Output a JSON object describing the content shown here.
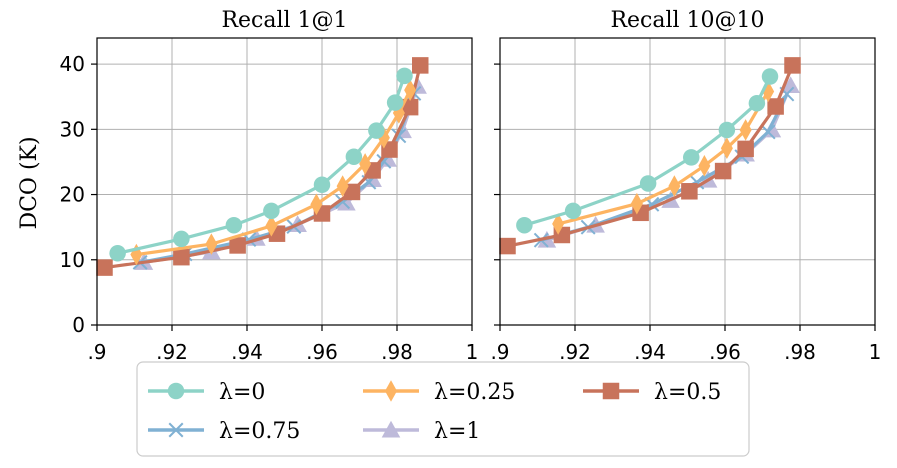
{
  "chart_data": {
    "type": "line",
    "ylabel": "DCO (K)",
    "xlim": [
      0.9,
      1.0
    ],
    "ylim": [
      0,
      44
    ],
    "x_ticks": [
      ".9",
      ".92",
      ".94",
      ".96",
      ".98",
      "1"
    ],
    "y_ticks": [
      "0",
      "10",
      "20",
      "30",
      "40"
    ],
    "grid": true,
    "legend": {
      "placement": "bottom-center",
      "columns": 3,
      "entries": [
        "λ=0",
        "λ=0.25",
        "λ=0.5",
        "λ=0.75",
        "λ=1"
      ]
    },
    "series_style": [
      {
        "name": "λ=0",
        "color": "#8dd3c7",
        "marker": "circle"
      },
      {
        "name": "λ=0.25",
        "color": "#fdb462",
        "marker": "thin-diamond"
      },
      {
        "name": "λ=0.5",
        "color": "#c8735b",
        "marker": "square"
      },
      {
        "name": "λ=0.75",
        "color": "#80b1d3",
        "marker": "x"
      },
      {
        "name": "λ=1",
        "color": "#bebada",
        "marker": "triangle"
      }
    ],
    "panels": [
      {
        "title": "Recall 1@1",
        "series": [
          {
            "name": "λ=0",
            "x": [
              0.9055,
              0.9225,
              0.9365,
              0.9465,
              0.96,
              0.9685,
              0.9745,
              0.9795,
              0.982
            ],
            "y": [
              11.0,
              13.2,
              15.3,
              17.5,
              21.5,
              25.8,
              29.8,
              34.1,
              38.2
            ]
          },
          {
            "name": "λ=0.25",
            "x": [
              0.9105,
              0.9305,
              0.9465,
              0.9585,
              0.9655,
              0.9715,
              0.9765,
              0.9805,
              0.9835
            ],
            "y": [
              10.8,
              12.4,
              15.2,
              18.5,
              21.3,
              24.7,
              28.7,
              32.5,
              36.0
            ]
          },
          {
            "name": "λ=0.5",
            "x": [
              0.902,
              0.9225,
              0.9375,
              0.948,
              0.96,
              0.968,
              0.9735,
              0.978,
              0.9835,
              0.9862
            ],
            "y": [
              8.8,
              10.4,
              12.2,
              14.0,
              17.1,
              20.4,
              23.7,
              26.9,
              33.4,
              39.8
            ]
          },
          {
            "name": "λ=0.75",
            "x": [
              0.9115,
              0.9235,
              0.9405,
              0.9525,
              0.9655,
              0.9725,
              0.9765,
              0.9805,
              0.9845
            ],
            "y": [
              9.6,
              10.9,
              13.1,
              15.1,
              18.9,
              21.9,
              25.1,
              29.0,
              35.5
            ]
          },
          {
            "name": "λ=1",
            "x": [
              0.9125,
              0.9305,
              0.9425,
              0.9535,
              0.9665,
              0.9735,
              0.9775,
              0.9815,
              0.9855
            ],
            "y": [
              9.6,
              11.2,
              13.3,
              15.4,
              18.7,
              22.3,
              25.4,
              29.8,
              36.6
            ]
          }
        ]
      },
      {
        "title": "Recall 10@10",
        "series": [
          {
            "name": "λ=0",
            "x": [
              0.9065,
              0.9195,
              0.9395,
              0.951,
              0.9605,
              0.9685,
              0.972
            ],
            "y": [
              15.3,
              17.5,
              21.7,
              25.7,
              29.9,
              34.0,
              38.1
            ]
          },
          {
            "name": "λ=0.25",
            "x": [
              0.9155,
              0.9365,
              0.9465,
              0.9545,
              0.9605,
              0.9655,
              0.9715
            ],
            "y": [
              15.5,
              18.6,
              21.3,
              24.4,
              27.1,
              29.9,
              35.8
            ]
          },
          {
            "name": "λ=0.5",
            "x": [
              0.902,
              0.9165,
              0.9375,
              0.9505,
              0.9595,
              0.9655,
              0.9735,
              0.978
            ],
            "y": [
              12.1,
              13.8,
              17.2,
              20.5,
              23.6,
              27.0,
              33.5,
              39.8
            ]
          },
          {
            "name": "λ=0.75",
            "x": [
              0.911,
              0.9235,
              0.9405,
              0.9525,
              0.9645,
              0.9715,
              0.9765
            ],
            "y": [
              13.0,
              15.0,
              18.5,
              21.9,
              25.8,
              29.6,
              35.4
            ]
          },
          {
            "name": "λ=1",
            "x": [
              0.9125,
              0.9255,
              0.9455,
              0.9555,
              0.9655,
              0.9725,
              0.9775
            ],
            "y": [
              13.0,
              15.3,
              19.1,
              22.2,
              26.2,
              29.9,
              36.7
            ]
          }
        ]
      }
    ]
  }
}
